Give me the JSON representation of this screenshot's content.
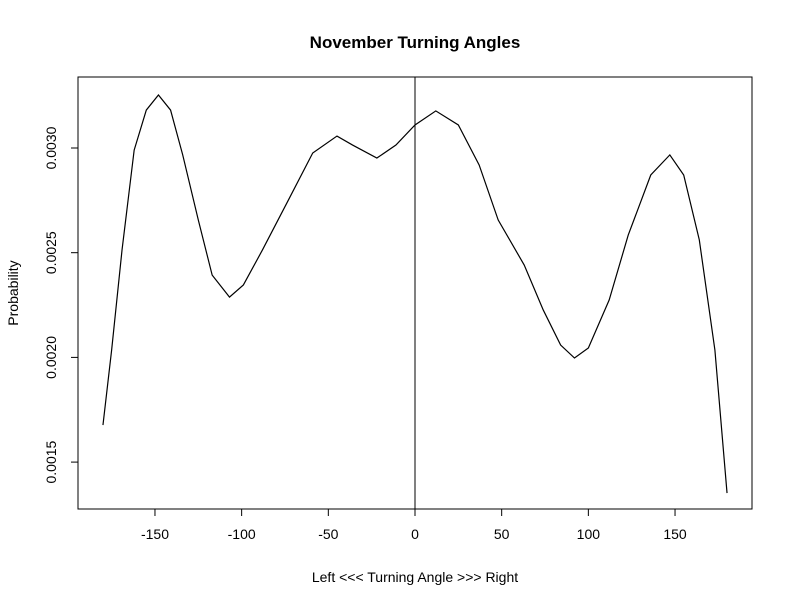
{
  "chart_data": {
    "type": "line",
    "title": "November Turning Angles",
    "x_label": "Left <<< Turning Angle >>> Right",
    "y_label": "Probability",
    "x": [
      -180,
      -175,
      -169,
      -162,
      -155,
      -148,
      -141,
      -134,
      -125,
      -117,
      -107,
      -99,
      -88,
      -73,
      -59,
      -45,
      -36,
      -22,
      -11,
      0,
      12,
      25,
      37,
      48,
      63,
      74,
      84,
      92,
      100,
      112,
      123,
      136,
      147,
      155,
      164,
      173,
      180
    ],
    "series": [
      {
        "name": "density",
        "color": "#000000",
        "values": [
          0.001677,
          0.002035,
          0.002513,
          0.00299,
          0.003181,
          0.003253,
          0.003181,
          0.002967,
          0.002656,
          0.002393,
          0.002288,
          0.002346,
          0.002513,
          0.002752,
          0.002976,
          0.003057,
          0.003014,
          0.002952,
          0.003014,
          0.00311,
          0.003177,
          0.00311,
          0.002919,
          0.002656,
          0.002441,
          0.002226,
          0.002059,
          0.001997,
          0.002045,
          0.002274,
          0.002584,
          0.002871,
          0.002967,
          0.002871,
          0.002561,
          0.002035,
          0.001352
        ]
      }
    ],
    "xlim": [
      -194.4,
      194.4
    ],
    "ylim": [
      0.001276,
      0.003339
    ],
    "xticks": [
      -150,
      -100,
      -50,
      0,
      50,
      100,
      150
    ],
    "yticks": [
      {
        "value": 0.0015,
        "label": "0.0015"
      },
      {
        "value": 0.002,
        "label": "0.0020"
      },
      {
        "value": 0.0025,
        "label": "0.0025"
      },
      {
        "value": 0.003,
        "label": "0.0030"
      }
    ],
    "vlines": [
      0
    ]
  }
}
